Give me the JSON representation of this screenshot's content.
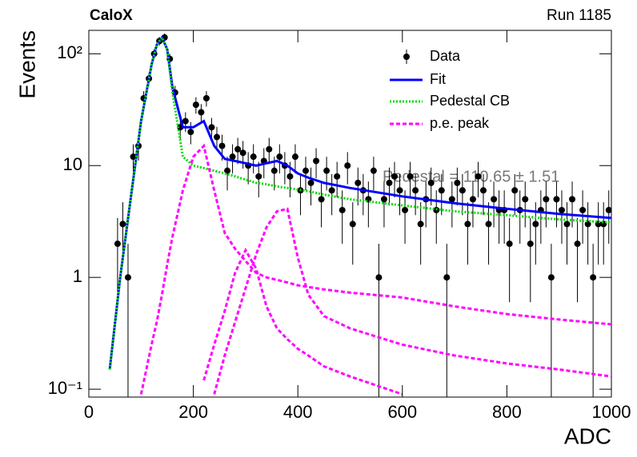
{
  "chart_data": {
    "type": "scatter",
    "title": "CaloX",
    "subtitle": "Run 1185",
    "xlabel": "ADC",
    "ylabel": "Events",
    "annotation": "Pedestal = 110.65 ± 1.51",
    "xlim": [
      0,
      1000
    ],
    "ylim": [
      0.085,
      162
    ],
    "ylog": true,
    "xticks": [
      0,
      200,
      400,
      600,
      800,
      1000
    ],
    "yticks": [
      {
        "value": 0.1,
        "label": "10⁻¹"
      },
      1,
      10,
      {
        "value": 100,
        "label": "10²"
      }
    ],
    "legend": "top-right",
    "series": [
      {
        "name": "Data",
        "color": "#000000",
        "style": "points",
        "x": [
          55,
          65,
          75,
          85,
          95,
          105,
          115,
          125,
          135,
          145,
          155,
          165,
          175,
          185,
          195,
          205,
          215,
          225,
          235,
          245,
          255,
          265,
          275,
          285,
          295,
          305,
          315,
          325,
          335,
          345,
          355,
          365,
          375,
          385,
          395,
          405,
          415,
          425,
          435,
          445,
          455,
          465,
          475,
          485,
          495,
          505,
          515,
          525,
          535,
          545,
          555,
          565,
          575,
          585,
          595,
          605,
          615,
          625,
          635,
          645,
          655,
          665,
          675,
          685,
          695,
          705,
          715,
          725,
          735,
          745,
          755,
          765,
          775,
          785,
          795,
          805,
          815,
          825,
          835,
          845,
          855,
          865,
          875,
          885,
          895,
          905,
          915,
          925,
          935,
          945,
          955,
          965,
          975,
          985,
          995
        ],
        "values": [
          2,
          3,
          1,
          12,
          15,
          40,
          60,
          100,
          130,
          140,
          90,
          45,
          22,
          25,
          20,
          35,
          30,
          40,
          22,
          18,
          15,
          9,
          12,
          14,
          13,
          10,
          12,
          8,
          11,
          14,
          9,
          12,
          10,
          8,
          12,
          6,
          9,
          7,
          11,
          5,
          9,
          6,
          8,
          4,
          10,
          3,
          7,
          6,
          5,
          9,
          1,
          5,
          7,
          8,
          6,
          4,
          8,
          6,
          3,
          5,
          7,
          4,
          6,
          1,
          5,
          7,
          6,
          3,
          5,
          8,
          6,
          3,
          5,
          4,
          4,
          2,
          6,
          4,
          5,
          2,
          3,
          4,
          5,
          1,
          5,
          4,
          3,
          5,
          2,
          4,
          3,
          1,
          3,
          3,
          4
        ],
        "errors": [
          1.4,
          1.7,
          1,
          3.5,
          3.9,
          6.3,
          7.7,
          10,
          11.4,
          11.8,
          9.5,
          6.7,
          4.7,
          5,
          4.5,
          5.9,
          5.5,
          6.3,
          4.7,
          4.2,
          3.9,
          3,
          3.5,
          3.7,
          3.6,
          3.2,
          3.5,
          2.8,
          3.3,
          3.7,
          3,
          3.5,
          3.2,
          2.8,
          3.5,
          2.4,
          3,
          2.6,
          3.3,
          2.2,
          3,
          2.4,
          2.8,
          2,
          3.2,
          1.7,
          2.6,
          2.4,
          2.2,
          3,
          1,
          2.2,
          2.6,
          2.8,
          2.4,
          2,
          2.8,
          2.4,
          1.7,
          2.2,
          2.6,
          2,
          2.4,
          1,
          2.2,
          2.6,
          2.4,
          1.7,
          2.2,
          2.8,
          2.4,
          1.7,
          2.2,
          2,
          2,
          1.4,
          2.4,
          2,
          2.2,
          1.4,
          1.7,
          2,
          2.2,
          1,
          2.2,
          2,
          1.7,
          2.2,
          1.4,
          2,
          1.7,
          1,
          1.7,
          1.7,
          2
        ]
      },
      {
        "name": "Fit",
        "color": "#0000ff",
        "style": "solid",
        "x": [
          40,
          60,
          80,
          100,
          120,
          130,
          140,
          150,
          160,
          180,
          200,
          220,
          240,
          260,
          280,
          300,
          320,
          340,
          360,
          380,
          400,
          420,
          450,
          500,
          600,
          700,
          800,
          900,
          1000
        ],
        "values": [
          0.15,
          1,
          5,
          25,
          80,
          120,
          140,
          110,
          50,
          22,
          22,
          25,
          15,
          11.5,
          11,
          10.5,
          10,
          10.5,
          11,
          10,
          8.5,
          7.8,
          7,
          6.3,
          5.3,
          4.6,
          4.1,
          3.7,
          3.4
        ]
      },
      {
        "name": "Pedestal CB",
        "color": "#00dd00",
        "style": "dotted",
        "x": [
          40,
          60,
          80,
          100,
          120,
          130,
          140,
          150,
          160,
          180,
          200,
          220,
          240,
          260,
          280,
          300,
          320,
          340,
          360,
          380,
          400,
          420,
          450,
          500,
          600,
          700,
          800,
          900,
          1000
        ],
        "values": [
          0.15,
          1,
          5,
          25,
          80,
          120,
          140,
          110,
          45,
          12,
          10,
          9.5,
          9,
          8.5,
          8,
          7.5,
          7,
          6.8,
          6.5,
          6.3,
          6.1,
          5.9,
          5.5,
          5,
          4.4,
          3.9,
          3.6,
          3.3,
          3.1
        ]
      },
      {
        "name": "p.e. peak",
        "color": "#ff00ff",
        "style": "dashed",
        "x": [
          40,
          60,
          80,
          100,
          120,
          130,
          140,
          150,
          160,
          180,
          200,
          220,
          240,
          260,
          280,
          300,
          320,
          340,
          360,
          380,
          400,
          420,
          450,
          500,
          600,
          700,
          800,
          900,
          1000
        ],
        "curves": [
          [
            null,
            null,
            null,
            0.09,
            0.25,
            0.4,
            0.7,
            1.3,
            2.3,
            6,
            12,
            15,
            6,
            2.5,
            1.8,
            1.4,
            1.1,
            1.0,
            0.95,
            0.9,
            0.85,
            0.82,
            0.78,
            0.73,
            0.66,
            0.55,
            0.47,
            0.42,
            0.38
          ],
          [
            null,
            null,
            null,
            null,
            null,
            null,
            null,
            null,
            null,
            null,
            null,
            0.12,
            0.25,
            0.5,
            1.1,
            1.75,
            1.2,
            0.55,
            0.35,
            0.28,
            0.23,
            0.2,
            0.16,
            0.13,
            0.09,
            null,
            null,
            null,
            null
          ],
          [
            null,
            null,
            null,
            null,
            null,
            null,
            null,
            null,
            null,
            null,
            null,
            null,
            0.09,
            0.2,
            0.4,
            0.8,
            1.6,
            2.8,
            3.9,
            4.1,
            1.5,
            0.7,
            0.45,
            0.35,
            0.25,
            0.2,
            0.17,
            0.15,
            0.13
          ]
        ]
      }
    ]
  }
}
